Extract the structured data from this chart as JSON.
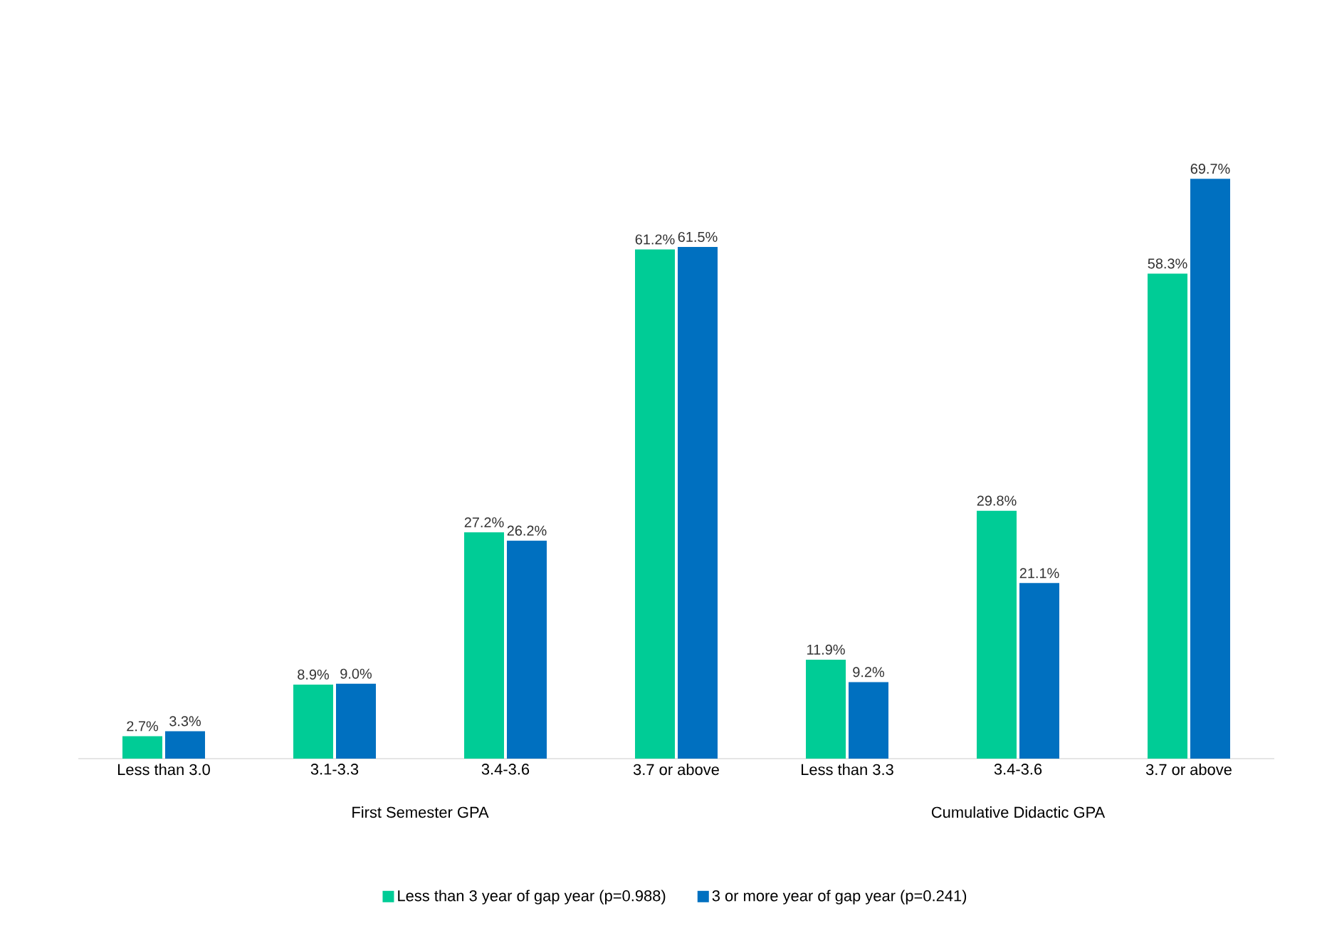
{
  "chart_data": {
    "type": "bar",
    "categories": [
      "Less than 3.0",
      "3.1-3.3",
      "3.4-3.6",
      "3.7 or above",
      "Less than 3.3",
      "3.4-3.6",
      "3.7 or above"
    ],
    "series": [
      {
        "name": "Less than 3 year of gap year (p=0.988)",
        "color": "#00cc96",
        "values": [
          2.7,
          8.9,
          27.2,
          61.2,
          11.9,
          29.8,
          58.3
        ],
        "value_labels": [
          "2.7%",
          "8.9%",
          "27.2%",
          "61.2%",
          "11.9%",
          "29.8%",
          "58.3%"
        ]
      },
      {
        "name": "3 or more year of gap year (p=0.241)",
        "color": "#0070c0",
        "values": [
          3.3,
          9.0,
          26.2,
          61.5,
          9.2,
          21.1,
          69.7
        ],
        "value_labels": [
          "3.3%",
          "9.0%",
          "26.2%",
          "61.5%",
          "9.2%",
          "21.1%",
          "69.7%"
        ]
      }
    ],
    "annotations": [
      "First Semester GPA",
      "Cumulative Didactic GPA"
    ],
    "legend": "bottom"
  }
}
